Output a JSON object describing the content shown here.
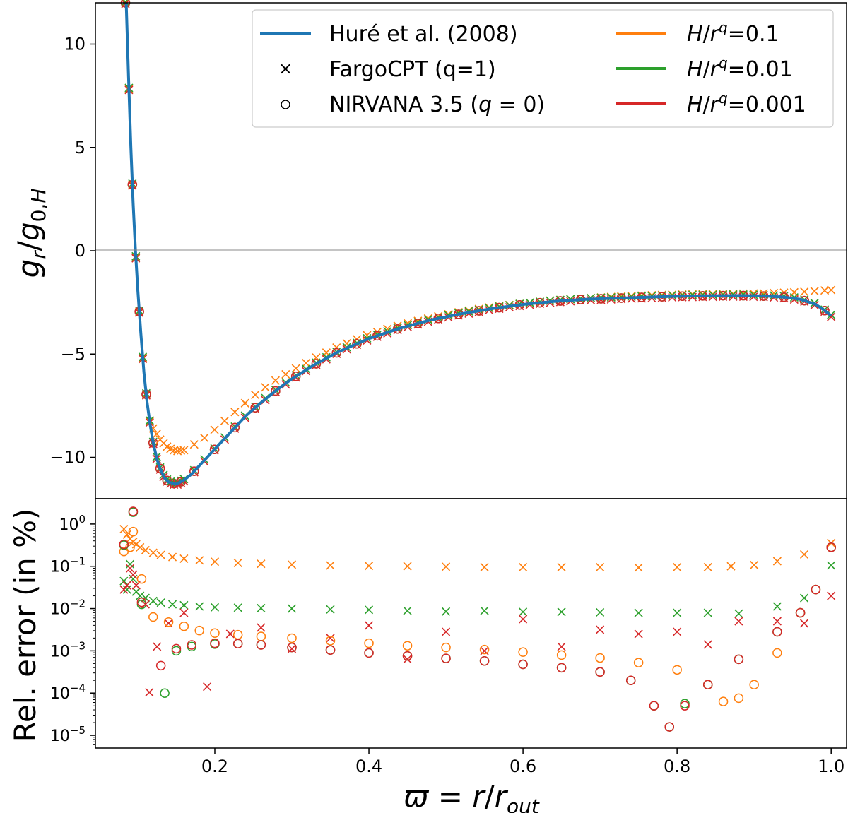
{
  "chart_data": {
    "type": "scatter",
    "shared_xlabel": "ϖ = r/r_out",
    "x_ticks": [
      0.2,
      0.4,
      0.6,
      0.8,
      1.0
    ],
    "x_tick_labels": [
      "0.2",
      "0.4",
      "0.6",
      "0.8",
      "1.0"
    ],
    "xlim": [
      0.045,
      1.02
    ],
    "colors": {
      "blue": "#1f77b4",
      "orange": "#ff7f0e",
      "green": "#2ca02c",
      "red": "#d62728",
      "black": "#000000"
    },
    "legend": {
      "placement": "top-right",
      "entries": [
        {
          "label": "Huré et al. (2008)",
          "marker": "line",
          "color": "#1f77b4"
        },
        {
          "label": "FargoCPT (q=1)",
          "marker": "x",
          "color": "#000000"
        },
        {
          "label": "NIRVANA 3.5 (q = 0)",
          "marker": "o",
          "color": "#000000"
        },
        {
          "label": "H/r^q=0.1",
          "marker": "line",
          "color": "#ff7f0e"
        },
        {
          "label": "H/r^q=0.01",
          "marker": "line",
          "color": "#2ca02c"
        },
        {
          "label": "H/r^q=0.001",
          "marker": "line",
          "color": "#d62728"
        }
      ]
    },
    "top_panel": {
      "ylabel": "g_r/g_0,H",
      "ylim": [
        -12,
        12
      ],
      "y_ticks": [
        10,
        5,
        0,
        -5,
        -10
      ],
      "y_tick_labels": [
        "10",
        "5",
        "0",
        "−5",
        "−10"
      ],
      "zero_line": true,
      "reference_curve": {
        "name": "Huré et al. (2008)",
        "x": [
          0.085,
          0.088,
          0.091,
          0.094,
          0.097,
          0.1,
          0.104,
          0.108,
          0.112,
          0.116,
          0.12,
          0.125,
          0.13,
          0.135,
          0.14,
          0.15,
          0.16,
          0.17,
          0.185,
          0.2,
          0.22,
          0.24,
          0.26,
          0.28,
          0.3,
          0.33,
          0.36,
          0.4,
          0.44,
          0.48,
          0.52,
          0.56,
          0.6,
          0.64,
          0.68,
          0.72,
          0.76,
          0.8,
          0.84,
          0.88,
          0.9,
          0.92,
          0.94,
          0.96,
          0.98,
          0.99,
          1.0
        ],
        "y": [
          12.0,
          8.4,
          5.0,
          2.3,
          0.0,
          -1.9,
          -4.0,
          -5.9,
          -7.3,
          -8.4,
          -9.3,
          -10.1,
          -10.65,
          -11.0,
          -11.2,
          -11.3,
          -11.1,
          -10.8,
          -10.2,
          -9.6,
          -8.8,
          -8.0,
          -7.35,
          -6.75,
          -6.2,
          -5.5,
          -4.9,
          -4.25,
          -3.75,
          -3.35,
          -3.05,
          -2.8,
          -2.6,
          -2.45,
          -2.35,
          -2.3,
          -2.25,
          -2.2,
          -2.18,
          -2.17,
          -2.18,
          -2.2,
          -2.25,
          -2.35,
          -2.6,
          -2.85,
          -3.15
        ]
      },
      "offset_curve_h01": {
        "name": "H/r^q=0.1 (FargoCPT)",
        "x": [
          0.12,
          0.13,
          0.14,
          0.15,
          0.16,
          0.17,
          0.185,
          0.2,
          0.22,
          0.24,
          0.26,
          0.28,
          0.3,
          0.33,
          0.36,
          0.4,
          0.44,
          0.48,
          0.52,
          0.56,
          0.6,
          0.64,
          0.68,
          0.72,
          0.76,
          0.8,
          0.84,
          0.88,
          0.92,
          0.96,
          1.0
        ],
        "y": [
          -8.6,
          -9.2,
          -9.55,
          -9.7,
          -9.65,
          -9.45,
          -9.1,
          -8.65,
          -8.0,
          -7.35,
          -6.75,
          -6.25,
          -5.8,
          -5.2,
          -4.65,
          -4.05,
          -3.6,
          -3.25,
          -2.95,
          -2.72,
          -2.55,
          -2.4,
          -2.3,
          -2.22,
          -2.16,
          -2.12,
          -2.1,
          -2.08,
          -2.05,
          -2.0,
          -1.9
        ]
      }
    },
    "bottom_panel": {
      "ylabel": "Rel. error (in %)",
      "yscale": "log",
      "ylim_log10": [
        -5.3,
        0.6
      ],
      "y_ticks_log10": [
        0,
        -1,
        -2,
        -3,
        -4,
        -5
      ],
      "y_tick_mantissa": [
        "10",
        "10",
        "10",
        "10",
        "10",
        "10"
      ],
      "y_tick_exponents": [
        "0",
        "−1",
        "−2",
        "−3",
        "−4",
        "−5"
      ],
      "series": [
        {
          "name": "FargoCPT H/r^q=0.1",
          "marker": "x",
          "color": "#ff7f0e",
          "x_log10err": [
            [
              0.082,
              -0.12
            ],
            [
              0.086,
              -0.25
            ],
            [
              0.09,
              -0.35
            ],
            [
              0.094,
              -0.42
            ],
            [
              0.098,
              -0.48
            ],
            [
              0.103,
              -0.55
            ],
            [
              0.11,
              -0.62
            ],
            [
              0.12,
              -0.68
            ],
            [
              0.13,
              -0.73
            ],
            [
              0.145,
              -0.78
            ],
            [
              0.16,
              -0.82
            ],
            [
              0.18,
              -0.86
            ],
            [
              0.2,
              -0.89
            ],
            [
              0.23,
              -0.92
            ],
            [
              0.26,
              -0.94
            ],
            [
              0.3,
              -0.96
            ],
            [
              0.35,
              -0.98
            ],
            [
              0.4,
              -0.99
            ],
            [
              0.45,
              -1.0
            ],
            [
              0.5,
              -1.01
            ],
            [
              0.55,
              -1.02
            ],
            [
              0.6,
              -1.02
            ],
            [
              0.65,
              -1.02
            ],
            [
              0.7,
              -1.02
            ],
            [
              0.75,
              -1.03
            ],
            [
              0.8,
              -1.02
            ],
            [
              0.84,
              -1.02
            ],
            [
              0.87,
              -1.0
            ],
            [
              0.9,
              -0.97
            ],
            [
              0.93,
              -0.88
            ],
            [
              0.965,
              -0.72
            ],
            [
              1.0,
              -0.45
            ]
          ]
        },
        {
          "name": "FargoCPT H/r^q=0.01",
          "marker": "x",
          "color": "#2ca02c",
          "x_log10err": [
            [
              0.082,
              -1.35
            ],
            [
              0.086,
              -1.55
            ],
            [
              0.09,
              -0.95
            ],
            [
              0.094,
              -1.3
            ],
            [
              0.098,
              -1.6
            ],
            [
              0.103,
              -1.7
            ],
            [
              0.11,
              -1.75
            ],
            [
              0.12,
              -1.82
            ],
            [
              0.13,
              -1.86
            ],
            [
              0.145,
              -1.9
            ],
            [
              0.16,
              -1.92
            ],
            [
              0.18,
              -1.95
            ],
            [
              0.2,
              -1.97
            ],
            [
              0.23,
              -1.98
            ],
            [
              0.26,
              -1.99
            ],
            [
              0.3,
              -2.0
            ],
            [
              0.35,
              -2.02
            ],
            [
              0.4,
              -2.03
            ],
            [
              0.45,
              -2.05
            ],
            [
              0.5,
              -2.07
            ],
            [
              0.55,
              -2.05
            ],
            [
              0.6,
              -2.08
            ],
            [
              0.65,
              -2.08
            ],
            [
              0.7,
              -2.09
            ],
            [
              0.75,
              -2.1
            ],
            [
              0.8,
              -2.1
            ],
            [
              0.84,
              -2.1
            ],
            [
              0.88,
              -2.12
            ],
            [
              0.93,
              -1.95
            ],
            [
              0.965,
              -1.75
            ],
            [
              1.0,
              -0.98
            ]
          ]
        },
        {
          "name": "FargoCPT H/r^q=0.001",
          "marker": "x",
          "color": "#d62728",
          "x_log10err": [
            [
              0.082,
              -1.55
            ],
            [
              0.086,
              -1.45
            ],
            [
              0.09,
              -1.05
            ],
            [
              0.094,
              -1.2
            ],
            [
              0.098,
              -1.45
            ],
            [
              0.11,
              -1.9
            ],
            [
              0.115,
              -3.98
            ],
            [
              0.125,
              -2.9
            ],
            [
              0.14,
              -2.35
            ],
            [
              0.16,
              -2.1
            ],
            [
              0.19,
              -3.85
            ],
            [
              0.22,
              -2.6
            ],
            [
              0.26,
              -2.45
            ],
            [
              0.3,
              -2.95
            ],
            [
              0.35,
              -2.7
            ],
            [
              0.4,
              -2.4
            ],
            [
              0.45,
              -3.2
            ],
            [
              0.5,
              -2.55
            ],
            [
              0.55,
              -3.0
            ],
            [
              0.6,
              -2.25
            ],
            [
              0.65,
              -2.9
            ],
            [
              0.7,
              -2.5
            ],
            [
              0.75,
              -2.6
            ],
            [
              0.8,
              -2.55
            ],
            [
              0.84,
              -2.85
            ],
            [
              0.88,
              -2.3
            ],
            [
              0.93,
              -2.3
            ],
            [
              0.965,
              -2.35
            ],
            [
              1.0,
              -1.7
            ]
          ]
        },
        {
          "name": "NIRVANA H/r^q=0.1",
          "marker": "o",
          "color": "#ff7f0e",
          "x_log10err": [
            [
              0.082,
              -0.65
            ],
            [
              0.09,
              -0.55
            ],
            [
              0.094,
              -0.18
            ],
            [
              0.105,
              -1.3
            ],
            [
              0.12,
              -2.2
            ],
            [
              0.14,
              -2.32
            ],
            [
              0.16,
              -2.42
            ],
            [
              0.18,
              -2.52
            ],
            [
              0.2,
              -2.58
            ],
            [
              0.23,
              -2.62
            ],
            [
              0.26,
              -2.66
            ],
            [
              0.3,
              -2.7
            ],
            [
              0.35,
              -2.76
            ],
            [
              0.4,
              -2.82
            ],
            [
              0.45,
              -2.88
            ],
            [
              0.5,
              -2.92
            ],
            [
              0.55,
              -2.97
            ],
            [
              0.6,
              -3.03
            ],
            [
              0.65,
              -3.1
            ],
            [
              0.7,
              -3.17
            ],
            [
              0.75,
              -3.28
            ],
            [
              0.8,
              -3.45
            ],
            [
              0.84,
              -3.8
            ],
            [
              0.86,
              -4.2
            ],
            [
              0.88,
              -4.12
            ],
            [
              0.9,
              -3.8
            ],
            [
              0.93,
              -3.05
            ],
            [
              0.96,
              -2.1
            ],
            [
              0.98,
              -1.55
            ],
            [
              1.0,
              -0.55
            ]
          ]
        },
        {
          "name": "NIRVANA H/r^q=0.01",
          "marker": "o",
          "color": "#2ca02c",
          "x_log10err": [
            [
              0.082,
              -0.5
            ],
            [
              0.094,
              0.28
            ],
            [
              0.105,
              -1.9
            ],
            [
              0.135,
              -4.0
            ],
            [
              0.15,
              -3.0
            ],
            [
              0.17,
              -2.9
            ],
            [
              0.2,
              -2.84
            ],
            [
              0.23,
              -2.83
            ],
            [
              0.26,
              -2.86
            ],
            [
              0.3,
              -2.92
            ],
            [
              0.35,
              -2.98
            ],
            [
              0.4,
              -3.05
            ],
            [
              0.45,
              -3.12
            ],
            [
              0.5,
              -3.18
            ],
            [
              0.55,
              -3.24
            ],
            [
              0.6,
              -3.32
            ],
            [
              0.65,
              -3.4
            ],
            [
              0.7,
              -3.5
            ],
            [
              0.74,
              -3.7
            ],
            [
              0.77,
              -4.3
            ],
            [
              0.79,
              -4.8
            ],
            [
              0.81,
              -4.25
            ],
            [
              0.84,
              -3.8
            ],
            [
              0.88,
              -3.2
            ],
            [
              0.93,
              -2.55
            ],
            [
              0.96,
              -2.1
            ],
            [
              0.98,
              -1.55
            ],
            [
              1.0,
              -0.55
            ]
          ]
        },
        {
          "name": "NIRVANA H/r^q=0.001",
          "marker": "o",
          "color": "#d62728",
          "x_log10err": [
            [
              0.082,
              -0.48
            ],
            [
              0.094,
              0.3
            ],
            [
              0.105,
              -1.85
            ],
            [
              0.13,
              -3.35
            ],
            [
              0.15,
              -2.95
            ],
            [
              0.17,
              -2.86
            ],
            [
              0.2,
              -2.82
            ],
            [
              0.23,
              -2.83
            ],
            [
              0.26,
              -2.86
            ],
            [
              0.3,
              -2.92
            ],
            [
              0.35,
              -2.98
            ],
            [
              0.4,
              -3.05
            ],
            [
              0.45,
              -3.12
            ],
            [
              0.5,
              -3.18
            ],
            [
              0.55,
              -3.24
            ],
            [
              0.6,
              -3.32
            ],
            [
              0.65,
              -3.4
            ],
            [
              0.7,
              -3.5
            ],
            [
              0.74,
              -3.7
            ],
            [
              0.77,
              -4.3
            ],
            [
              0.79,
              -4.8
            ],
            [
              0.81,
              -4.3
            ],
            [
              0.84,
              -3.8
            ],
            [
              0.88,
              -3.2
            ],
            [
              0.93,
              -2.55
            ],
            [
              0.96,
              -2.1
            ],
            [
              0.98,
              -1.55
            ],
            [
              1.0,
              -0.55
            ]
          ]
        }
      ]
    }
  }
}
